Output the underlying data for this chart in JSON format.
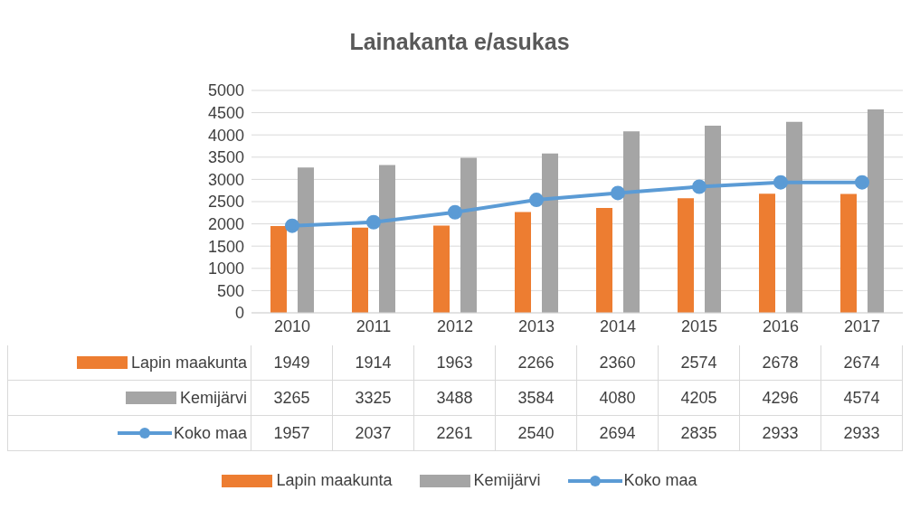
{
  "chart_data": {
    "type": "bar",
    "title": "Lainakanta e/asukas",
    "categories": [
      "2010",
      "2011",
      "2012",
      "2013",
      "2014",
      "2015",
      "2016",
      "2017"
    ],
    "series": [
      {
        "name": "Lapin maakunta",
        "color": "#ed7d31",
        "values": [
          1949,
          1914,
          1963,
          2266,
          2360,
          2574,
          2678,
          2674
        ]
      },
      {
        "name": "Kemijärvi",
        "color": "#a5a5a5",
        "values": [
          3265,
          3325,
          3488,
          3584,
          4080,
          4205,
          4296,
          4574
        ]
      },
      {
        "name": "Koko maa",
        "type": "line",
        "color": "#5b9bd5",
        "values": [
          1957,
          2037,
          2261,
          2540,
          2694,
          2835,
          2933,
          2933
        ]
      }
    ],
    "ylim": [
      0,
      5000
    ],
    "yticks": [
      0,
      500,
      1000,
      1500,
      2000,
      2500,
      3000,
      3500,
      4000,
      4500,
      5000
    ],
    "grid": "y",
    "legend": "bottom",
    "data_labels": true,
    "marker": "circle",
    "line_style": "solid"
  }
}
